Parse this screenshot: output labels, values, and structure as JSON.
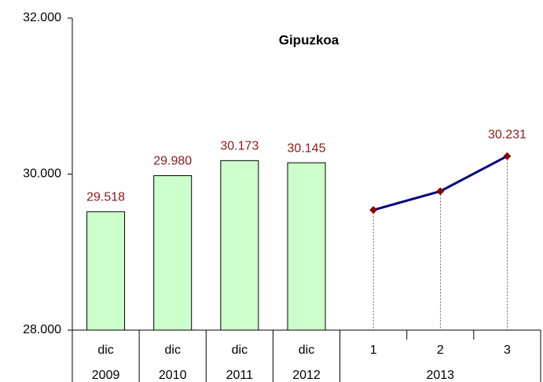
{
  "chart_data": {
    "type": "combo",
    "title": "Gipuzkoa",
    "categories": [
      "dic",
      "dic",
      "dic",
      "dic",
      "1",
      "2",
      "3"
    ],
    "groups": [
      {
        "label": "2009",
        "size": 1
      },
      {
        "label": "2010",
        "size": 1
      },
      {
        "label": "2011",
        "size": 1
      },
      {
        "label": "2012",
        "size": 1
      },
      {
        "label": "2013",
        "size": 3
      }
    ],
    "series": [
      {
        "type": "bar",
        "color": "#ccffcc",
        "label_color": "#8b1a1a",
        "values": [
          29518,
          29980,
          30173,
          30145,
          null,
          null,
          null
        ],
        "value_labels": [
          "29.518",
          "29.980",
          "30.173",
          "30.145",
          null,
          null,
          null
        ]
      },
      {
        "type": "line",
        "color": "#000080",
        "marker_color": "#8b0000",
        "label_color": "#8b1a1a",
        "values": [
          null,
          null,
          null,
          null,
          29540,
          29780,
          30231
        ],
        "value_labels": [
          null,
          null,
          null,
          null,
          null,
          null,
          "30.231"
        ]
      }
    ],
    "ylim": [
      28000,
      32000
    ],
    "yticks": [
      {
        "value": 28000,
        "label": "28.000"
      },
      {
        "value": 30000,
        "label": "30.000"
      },
      {
        "value": 32000,
        "label": "32.000"
      }
    ],
    "grid": false
  }
}
